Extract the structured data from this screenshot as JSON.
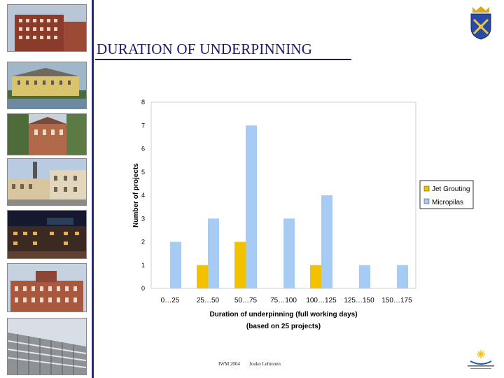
{
  "slide": {
    "title": "DURATION OF UNDERPINNING",
    "footer_event": "IWM 2004",
    "footer_author": "Jouko Lehtonen"
  },
  "colors": {
    "jet_grouting": "#f2c200",
    "micropiles": "#a6cbf5",
    "title": "#1a1a6e",
    "side_bar": "#1c2a8a"
  },
  "icons": [
    "city-crest-icon",
    "organization-logo-icon"
  ],
  "chart_data": {
    "type": "bar",
    "categories": [
      "0…25",
      "25…50",
      "50…75",
      "75…100",
      "100…125",
      "125…150",
      "150…175"
    ],
    "series": [
      {
        "name": "Jet Grouting",
        "values": [
          0,
          1,
          2,
          0,
          1,
          0,
          0
        ]
      },
      {
        "name": "Micropilas",
        "values": [
          2,
          3,
          7,
          3,
          4,
          1,
          1
        ]
      }
    ],
    "title": "",
    "xlabel": "Duration of underpinning (full working days)",
    "xlabel_line2": "(based on 25 projects)",
    "ylabel": "Number of projects",
    "ylim": [
      0,
      8
    ],
    "yticks": [
      0,
      1,
      2,
      3,
      4,
      5,
      6,
      7,
      8
    ],
    "grid": false,
    "legend_position": "right"
  }
}
